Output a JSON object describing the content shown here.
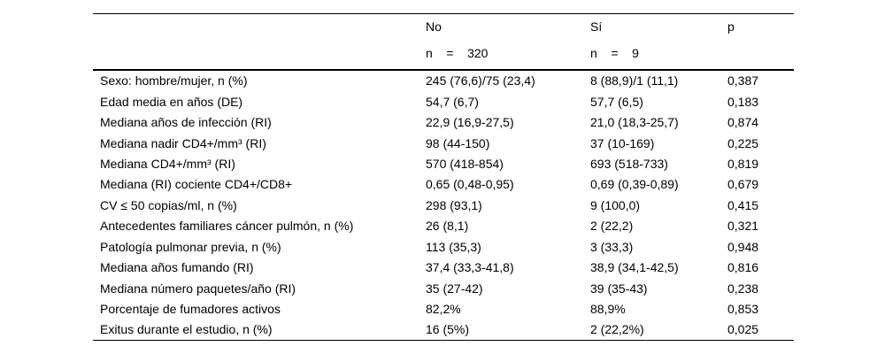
{
  "table": {
    "header": {
      "no_label": "No",
      "no_n": "n    =    320",
      "si_label": "Sí",
      "si_n": "n    =    9",
      "p_label": "p"
    },
    "rows": [
      {
        "label": "Sexo: hombre/mujer, n (%)",
        "no": "245 (76,6)/75 (23,4)",
        "si": "8 (88,9)/1 (11,1)",
        "p": "0,387"
      },
      {
        "label": "Edad media en años (DE)",
        "no": "54,7 (6,7)",
        "si": "57,7 (6,5)",
        "p": "0,183"
      },
      {
        "label": "Mediana años de infección (RI)",
        "no": "22,9 (16,9-27,5)",
        "si": "21,0 (18,3-25,7)",
        "p": "0,874"
      },
      {
        "label": "Mediana nadir CD4+/mm³ (RI)",
        "no": "98 (44-150)",
        "si": "37 (10-169)",
        "p": "0,225"
      },
      {
        "label": "Mediana CD4+/mm³ (RI)",
        "no": "570 (418-854)",
        "si": "693 (518-733)",
        "p": "0,819"
      },
      {
        "label": "Mediana (RI) cociente CD4+/CD8+",
        "no": "0,65 (0,48-0,95)",
        "si": "0,69 (0,39-0,89)",
        "p": "0,679"
      },
      {
        "label": "CV ≤ 50 copias/ml, n (%)",
        "no": "298 (93,1)",
        "si": "9 (100,0)",
        "p": "0,415"
      },
      {
        "label": "Antecedentes familiares cáncer pulmón, n (%)",
        "no": "26 (8,1)",
        "si": "2 (22,2)",
        "p": "0,321"
      },
      {
        "label": "Patología pulmonar previa, n (%)",
        "no": "113 (35,3)",
        "si": "3 (33,3)",
        "p": "0,948"
      },
      {
        "label": "Mediana años fumando (RI)",
        "no": "37,4 (33,3-41,8)",
        "si": "38,9 (34,1-42,5)",
        "p": "0,816"
      },
      {
        "label": "Mediana número paquetes/año (RI)",
        "no": "35 (27-42)",
        "si": "39 (35-43)",
        "p": "0,238"
      },
      {
        "label": "Porcentaje de fumadores activos",
        "no": "82,2%",
        "si": "88,9%",
        "p": "0,853"
      },
      {
        "label": "Exitus durante el estudio, n (%)",
        "no": "16 (5%)",
        "si": "2 (22,2%)",
        "p": "0,025"
      }
    ]
  }
}
